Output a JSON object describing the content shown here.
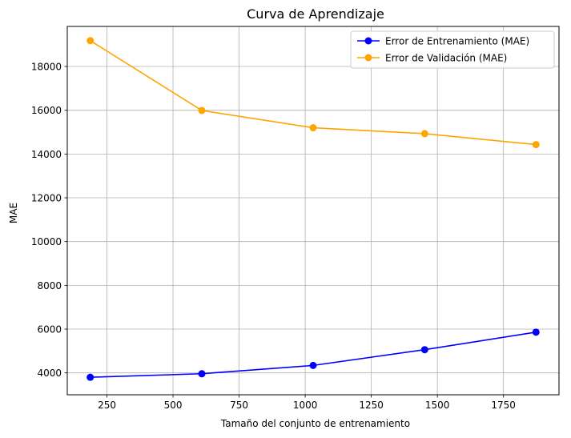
{
  "chart_data": {
    "type": "line",
    "title": "Curva de Aprendizaje",
    "xlabel": "Tamaño del conjunto de entrenamiento",
    "ylabel": "MAE",
    "x": [
      187,
      609,
      1030,
      1452,
      1873
    ],
    "xlim": [
      100,
      1960
    ],
    "ylim": [
      3000,
      19830
    ],
    "xticks": [
      250,
      500,
      750,
      1000,
      1250,
      1500,
      1750
    ],
    "yticks": [
      4000,
      6000,
      8000,
      10000,
      12000,
      14000,
      16000,
      18000
    ],
    "grid": true,
    "legend_position": "upper-right",
    "series": [
      {
        "name": "Error de Entrenamiento (MAE)",
        "color": "#0000ff",
        "values": [
          3800,
          3960,
          4340,
          5060,
          5860
        ]
      },
      {
        "name": "Error de Validación (MAE)",
        "color": "#ffa500",
        "values": [
          19180,
          15990,
          15200,
          14930,
          14430
        ]
      }
    ]
  }
}
